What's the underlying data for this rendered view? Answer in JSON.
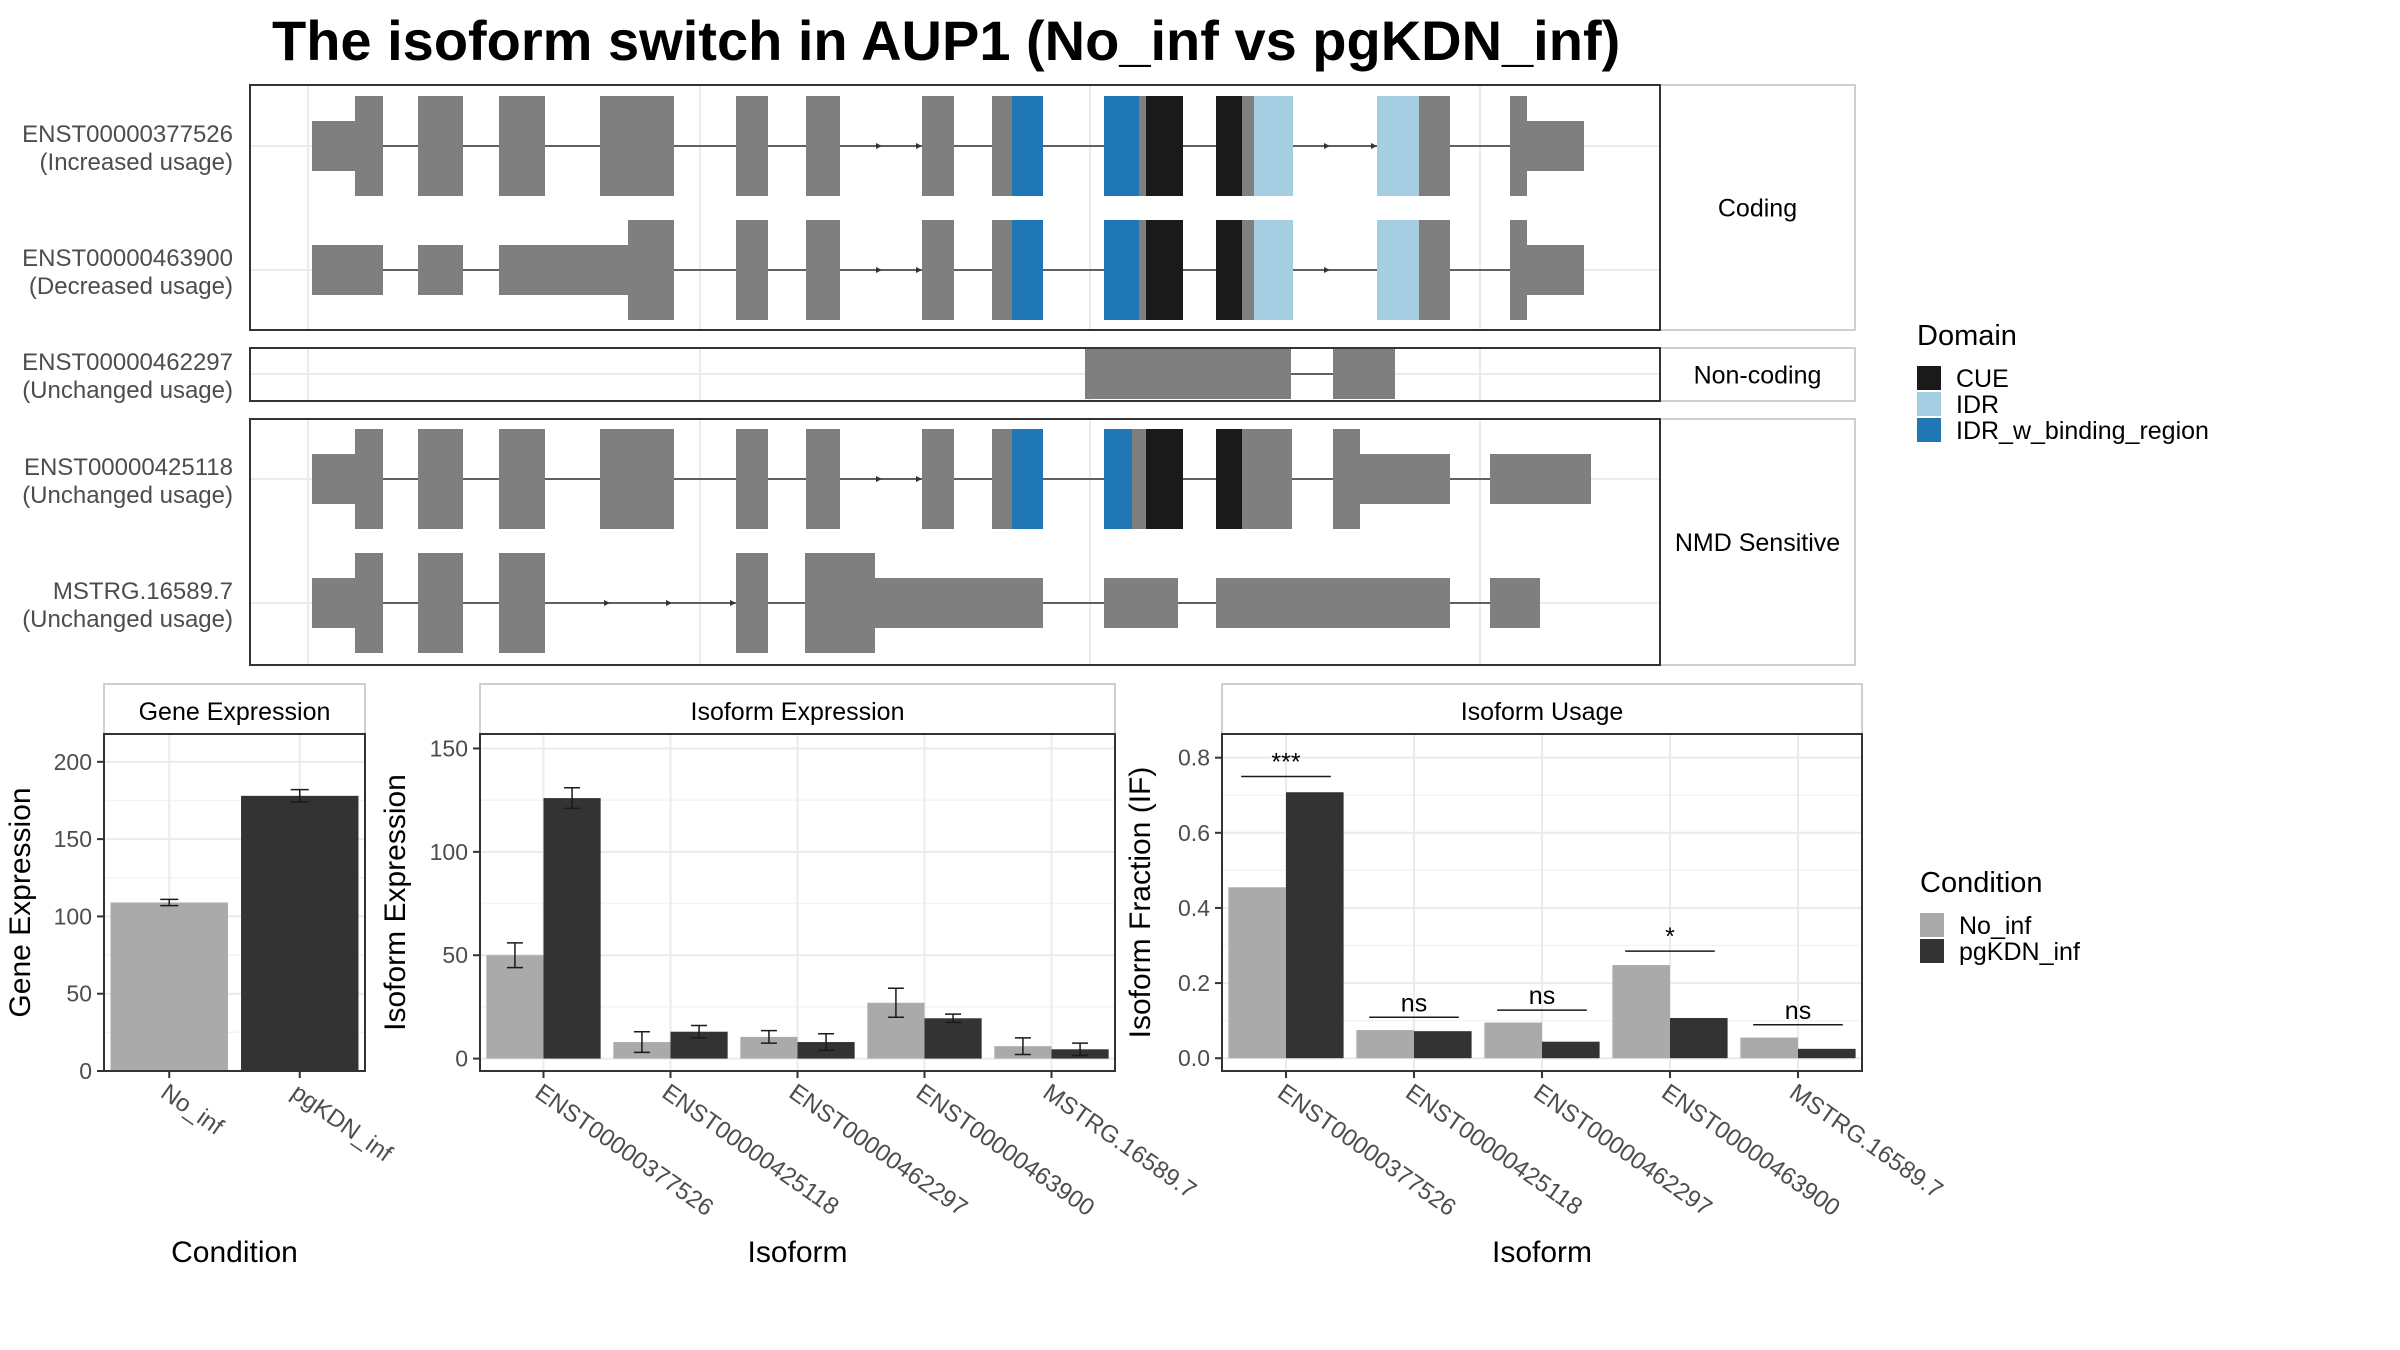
{
  "title": "The isoform switch in AUP1 (No_inf vs pgKDN_inf)",
  "colors": {
    "exon": "#7f7f7f",
    "CUE": "#1a1a1a",
    "IDR": "#a6cee3",
    "IDR_w_binding_region": "#1f78b4",
    "No_inf": "#aaaaaa",
    "pgKDN_inf": "#333333",
    "grid": "#ebebeb",
    "panel_border": "#333333",
    "strip_border": "#bfbfbf",
    "strip_fill": "#ffffff"
  },
  "domain_legend": {
    "title": "Domain",
    "items": [
      {
        "name": "CUE",
        "color": "#1a1a1a"
      },
      {
        "name": "IDR",
        "color": "#a6cee3"
      },
      {
        "name": "IDR_w_binding_region",
        "color": "#1f78b4"
      }
    ]
  },
  "condition_legend": {
    "title": "Condition",
    "items": [
      {
        "name": "No_inf",
        "color": "#aaaaaa"
      },
      {
        "name": "pgKDN_inf",
        "color": "#333333"
      }
    ]
  },
  "isoform_structure": {
    "panels": [
      {
        "strip": "Coding",
        "isoforms": [
          {
            "id": "ENST00000377526",
            "usage": "(Increased usage)"
          },
          {
            "id": "ENST00000463900",
            "usage": "(Decreased usage)"
          }
        ]
      },
      {
        "strip": "Non-coding",
        "isoforms": [
          {
            "id": "ENST00000462297",
            "usage": "(Unchanged usage)"
          }
        ]
      },
      {
        "strip": "NMD Sensitive",
        "isoforms": [
          {
            "id": "ENST00000425118",
            "usage": "(Unchanged usage)"
          },
          {
            "id": "MSTRG.16589.7",
            "usage": "(Unchanged usage)"
          }
        ]
      }
    ]
  },
  "chart_data": [
    {
      "type": "bar",
      "strip": "Gene Expression",
      "categories": [
        "No_inf",
        "pgKDN_inf"
      ],
      "values": [
        109,
        178
      ],
      "error": [
        2,
        4
      ],
      "colors": [
        "#aaaaaa",
        "#333333"
      ],
      "xlabel": "Condition",
      "ylabel": "Gene Expression",
      "ylim": [
        0,
        218
      ],
      "yticks": [
        0,
        50,
        100,
        150,
        200
      ]
    },
    {
      "type": "bar",
      "strip": "Isoform Expression",
      "categories": [
        "ENST00000377526",
        "ENST00000425118",
        "ENST00000462297",
        "ENST00000463900",
        "MSTRG.16589.7"
      ],
      "series": [
        {
          "name": "No_inf",
          "values": [
            50,
            8,
            10.5,
            27,
            6
          ],
          "error": [
            6,
            5,
            3,
            7,
            4
          ]
        },
        {
          "name": "pgKDN_inf",
          "values": [
            126,
            13,
            8,
            19.5,
            4.5
          ],
          "error": [
            5,
            3,
            4,
            2,
            3
          ]
        }
      ],
      "xlabel": "Isoform",
      "ylabel": "Isoform Expression",
      "ylim": [
        -6,
        157
      ],
      "yticks": [
        0,
        50,
        100,
        150
      ]
    },
    {
      "type": "bar",
      "strip": "Isoform Usage",
      "categories": [
        "ENST00000377526",
        "ENST00000425118",
        "ENST00000462297",
        "ENST00000463900",
        "MSTRG.16589.7"
      ],
      "series": [
        {
          "name": "No_inf",
          "values": [
            0.455,
            0.075,
            0.095,
            0.248,
            0.055
          ]
        },
        {
          "name": "pgKDN_inf",
          "values": [
            0.708,
            0.072,
            0.044,
            0.107,
            0.025
          ]
        }
      ],
      "significance": [
        {
          "label": "***",
          "y": 0.75
        },
        {
          "label": "ns",
          "y": 0.109
        },
        {
          "label": "ns",
          "y": 0.128
        },
        {
          "label": "*",
          "y": 0.285
        },
        {
          "label": "ns",
          "y": 0.089
        }
      ],
      "xlabel": "Isoform",
      "ylabel": "Isoform Fraction (IF)",
      "ylim": [
        -0.034,
        0.863
      ],
      "yticks": [
        0.0,
        0.2,
        0.4,
        0.6,
        0.8
      ],
      "ytick_labels": [
        "0.0",
        "0.2",
        "0.4",
        "0.6",
        "0.8"
      ]
    }
  ]
}
